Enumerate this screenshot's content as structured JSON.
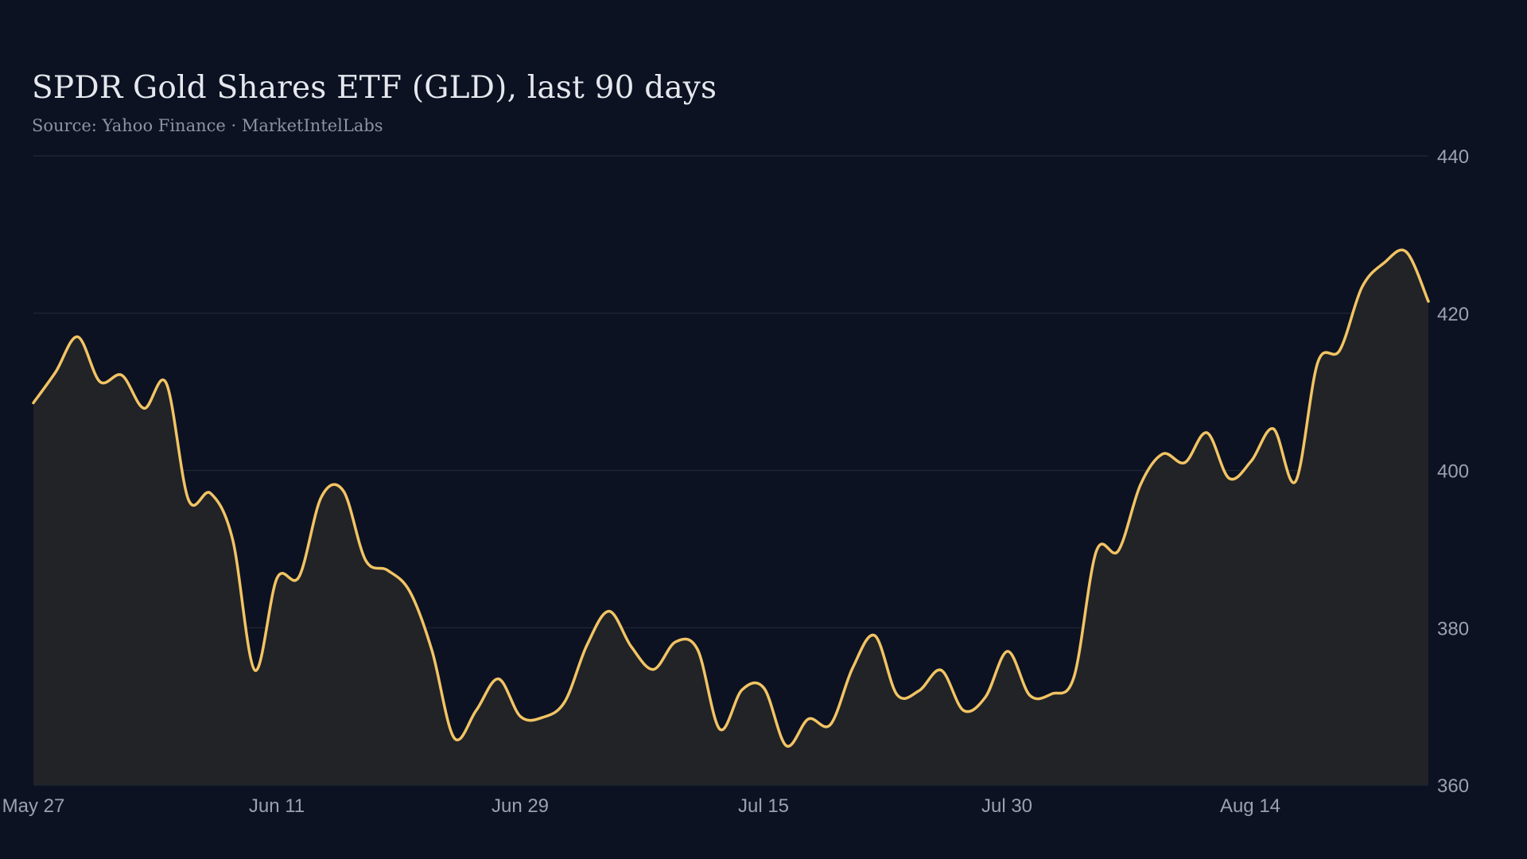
{
  "colors": {
    "background": "#0c1222",
    "line": "#f2c464",
    "area_fill": "#212326",
    "grid": "#1f2837",
    "tick_text": "#9aa1b0",
    "title_text": "#e6e8ee",
    "subtitle_text": "#8c93a3"
  },
  "chart_data": {
    "type": "area",
    "title": "SPDR Gold Shares ETF (GLD), last 90 days",
    "subtitle": "Source: Yahoo Finance · MarketIntelLabs",
    "xlabel": "",
    "ylabel": "",
    "ylim": [
      360,
      440
    ],
    "yticks": [
      360,
      380,
      400,
      420,
      440
    ],
    "y_axis_side": "right",
    "xticks": [
      "May 27",
      "Jun 11",
      "Jun 29",
      "Jul 15",
      "Jul 30",
      "Aug 14"
    ],
    "grid": true,
    "legend": "none",
    "series": [
      {
        "values": [
          408.6,
          412.5,
          417.0,
          411.3,
          412.1,
          407.9,
          411.1,
          396.3,
          397.1,
          391.2,
          374.6,
          386.3,
          386.5,
          396.6,
          397.4,
          388.6,
          387.3,
          384.6,
          377.1,
          366.0,
          369.5,
          373.5,
          368.7,
          368.6,
          370.6,
          377.8,
          382.1,
          377.6,
          374.7,
          378.2,
          377.2,
          367.1,
          372.1,
          372.3,
          365.0,
          368.4,
          367.7,
          374.9,
          379.0,
          371.5,
          372.0,
          374.6,
          369.5,
          371.2,
          377.0,
          371.4,
          371.6,
          373.8,
          389.7,
          389.8,
          398.2,
          402.1,
          401.0,
          404.8,
          399.0,
          401.2,
          405.3,
          398.6,
          413.7,
          415.3,
          423.3,
          426.4,
          427.8,
          421.5
        ]
      }
    ]
  }
}
